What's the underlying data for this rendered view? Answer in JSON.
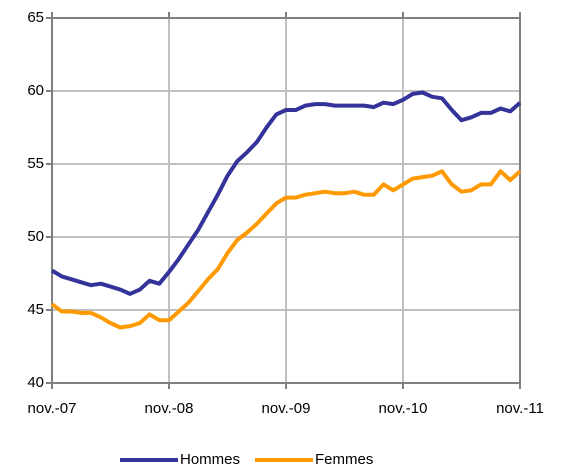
{
  "chart_data": {
    "type": "line",
    "categories": [
      "nov.-07",
      null,
      null,
      null,
      null,
      null,
      null,
      null,
      null,
      null,
      null,
      null,
      "nov.-08",
      null,
      null,
      null,
      null,
      null,
      null,
      null,
      null,
      null,
      null,
      null,
      "nov.-09",
      null,
      null,
      null,
      null,
      null,
      null,
      null,
      null,
      null,
      null,
      null,
      "nov.-10",
      null,
      null,
      null,
      null,
      null,
      null,
      null,
      null,
      null,
      null,
      null,
      "nov.-11"
    ],
    "series": [
      {
        "name": "Hommes",
        "color": "#333399",
        "values": [
          47.7,
          47.3,
          47.1,
          46.9,
          46.7,
          46.8,
          46.6,
          46.4,
          46.1,
          46.4,
          47.0,
          46.8,
          47.6,
          48.5,
          49.5,
          50.5,
          51.7,
          52.9,
          54.2,
          55.2,
          55.8,
          56.5,
          57.5,
          58.4,
          58.7,
          58.7,
          59.0,
          59.1,
          59.1,
          59.0,
          59.0,
          59.0,
          59.0,
          58.9,
          59.2,
          59.1,
          59.4,
          59.8,
          59.9,
          59.6,
          59.5,
          58.7,
          58.0,
          58.2,
          58.5,
          58.5,
          58.8,
          58.6,
          59.2
        ]
      },
      {
        "name": "Femmes",
        "color": "#ff9900",
        "values": [
          45.4,
          44.9,
          44.9,
          44.8,
          44.8,
          44.5,
          44.1,
          43.8,
          43.9,
          44.1,
          44.7,
          44.3,
          44.3,
          44.9,
          45.5,
          46.3,
          47.1,
          47.8,
          48.9,
          49.8,
          50.3,
          50.9,
          51.6,
          52.3,
          52.7,
          52.7,
          52.9,
          53.0,
          53.1,
          53.0,
          53.0,
          53.1,
          52.9,
          52.9,
          53.6,
          53.2,
          53.6,
          54.0,
          54.1,
          54.2,
          54.5,
          53.6,
          53.1,
          53.2,
          53.6,
          53.6,
          54.5,
          53.9,
          54.5
        ]
      }
    ],
    "ylim": [
      40,
      65
    ],
    "yticks": [
      40,
      45,
      50,
      55,
      60,
      65
    ],
    "grid": true,
    "legend": "bottom"
  }
}
